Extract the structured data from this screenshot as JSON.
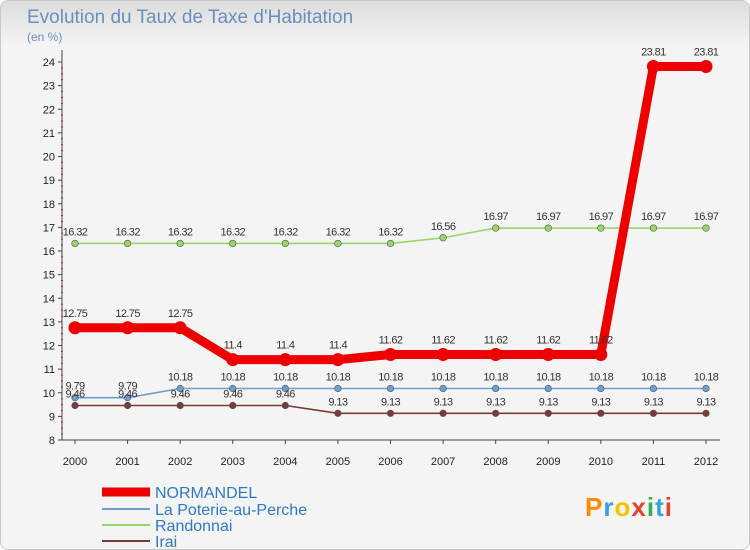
{
  "title": "Evolution du Taux de Taxe d'Habitation",
  "subtitle": "(en %)",
  "logo": {
    "letters": [
      "P",
      "r",
      "o",
      "x",
      "i",
      "t",
      "i"
    ],
    "colors": [
      "#ff8a00",
      "#3aa0e0",
      "#f2c400",
      "#e8402a",
      "#36b04a",
      "#3aa0e0",
      "#e8402a"
    ]
  },
  "chart_data": {
    "type": "line",
    "categories": [
      "2000",
      "2001",
      "2002",
      "2003",
      "2004",
      "2005",
      "2006",
      "2007",
      "2008",
      "2009",
      "2010",
      "2011",
      "2012"
    ],
    "ylim": [
      8,
      24
    ],
    "yticks": [
      8,
      9,
      10,
      11,
      12,
      13,
      14,
      15,
      16,
      17,
      18,
      19,
      20,
      21,
      22,
      23,
      24
    ],
    "grid": false,
    "legend_position": "bottom-left",
    "series": [
      {
        "name": "La Poterie-au-Perche",
        "color": "#6b9fce",
        "values": [
          9.79,
          9.79,
          10.18,
          10.18,
          10.18,
          10.18,
          10.18,
          10.18,
          10.18,
          10.18,
          10.18,
          10.18,
          10.18
        ],
        "labels": [
          "9.79",
          "9.79",
          "10.18",
          "10.18",
          "10.18",
          "10.18",
          "10.18",
          "10.18",
          "10.18",
          "10.18",
          "10.18",
          "10.18",
          "10.18"
        ]
      },
      {
        "name": "Randonnai",
        "color": "#98d66a",
        "values": [
          16.32,
          16.32,
          16.32,
          16.32,
          16.32,
          16.32,
          16.32,
          16.56,
          16.97,
          16.97,
          16.97,
          16.97,
          16.97
        ],
        "labels": [
          "16.32",
          "16.32",
          "16.32",
          "16.32",
          "16.32",
          "16.32",
          "16.32",
          "16.56",
          "16.97",
          "16.97",
          "16.97",
          "16.97",
          "16.97"
        ]
      },
      {
        "name": "Irai",
        "color": "#7a3a3a",
        "values": [
          9.46,
          9.46,
          9.46,
          9.46,
          9.46,
          9.13,
          9.13,
          9.13,
          9.13,
          9.13,
          9.13,
          9.13,
          9.13
        ],
        "labels": [
          "9.46",
          "9.46",
          "9.46",
          "9.46",
          "9.46",
          "9.13",
          "9.13",
          "9.13",
          "9.13",
          "9.13",
          "9.13",
          "9.13",
          "9.13"
        ]
      },
      {
        "name": "NORMANDEL",
        "color": "#ee0000",
        "values": [
          12.75,
          12.75,
          12.75,
          11.4,
          11.4,
          11.4,
          11.62,
          11.62,
          11.62,
          11.62,
          11.62,
          23.81,
          23.81
        ],
        "labels": [
          "12.75",
          "12.75",
          "12.75",
          "11.4",
          "11.4",
          "11.4",
          "11.62",
          "11.62",
          "11.62",
          "11.62",
          "11.62",
          "23.81",
          "23.81"
        ]
      }
    ],
    "legend": [
      {
        "name": "NORMANDEL",
        "color": "#ee0000"
      },
      {
        "name": "La Poterie-au-Perche",
        "color": "#6b9fce"
      },
      {
        "name": "Randonnai",
        "color": "#98d66a"
      },
      {
        "name": "Irai",
        "color": "#7a3a3a"
      }
    ]
  }
}
